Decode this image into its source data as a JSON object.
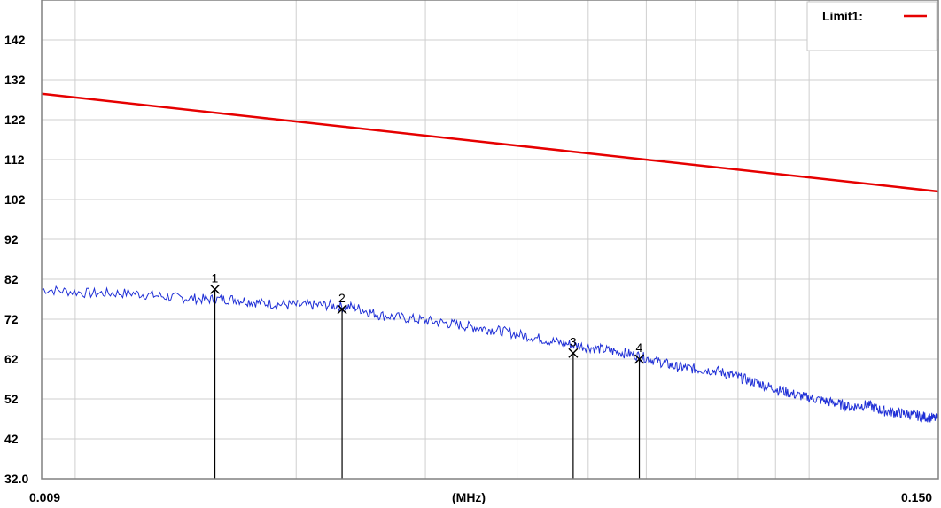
{
  "chart_data": {
    "type": "line",
    "title": "",
    "xlabel": "(MHz)",
    "ylabel": "",
    "x_scale": "log",
    "xlim": [
      0.009,
      0.15
    ],
    "ylim": [
      32.0,
      152
    ],
    "x_tick_labels": [
      "0.009",
      "0.150"
    ],
    "y_ticks": [
      32.0,
      42,
      52,
      62,
      72,
      82,
      92,
      102,
      112,
      122,
      132,
      142
    ],
    "y_tick_labels": [
      "32.0",
      "42",
      "52",
      "62",
      "72",
      "82",
      "92",
      "102",
      "112",
      "122",
      "132",
      "142"
    ],
    "grid": true,
    "legend": {
      "placement": "top-right",
      "entries": [
        {
          "label": "Limit1:",
          "color": "#e60000"
        }
      ]
    },
    "series": [
      {
        "name": "Limit1:",
        "color": "#e60000",
        "x": [
          0.009,
          0.15
        ],
        "y": [
          128.5,
          104
        ]
      },
      {
        "color": "#1f2fd6",
        "x": [
          0.009,
          0.0105,
          0.012,
          0.0135,
          0.015,
          0.0165,
          0.018,
          0.02,
          0.022,
          0.024,
          0.026,
          0.029,
          0.032,
          0.035,
          0.038,
          0.042,
          0.046,
          0.05,
          0.054,
          0.058,
          0.062,
          0.066,
          0.07,
          0.075,
          0.08,
          0.085,
          0.09,
          0.096,
          0.102,
          0.108,
          0.114,
          0.12,
          0.126,
          0.132,
          0.138,
          0.144,
          0.15
        ],
        "y": [
          79.5,
          78.5,
          78.5,
          77.5,
          77,
          77,
          76,
          75.5,
          75.5,
          75,
          73,
          72,
          71,
          70,
          69,
          67.5,
          66,
          65,
          64,
          63,
          61.5,
          60,
          59.5,
          59,
          57.5,
          56,
          54.5,
          53,
          52,
          51,
          50,
          50.5,
          49,
          48.5,
          48,
          47.5,
          47
        ]
      }
    ],
    "markers": [
      {
        "label": "1",
        "x": 0.0155,
        "y": 79.5
      },
      {
        "label": "2",
        "x": 0.0231,
        "y": 74.5
      },
      {
        "label": "3",
        "x": 0.0477,
        "y": 63.5
      },
      {
        "label": "4",
        "x": 0.0587,
        "y": 62
      }
    ]
  }
}
